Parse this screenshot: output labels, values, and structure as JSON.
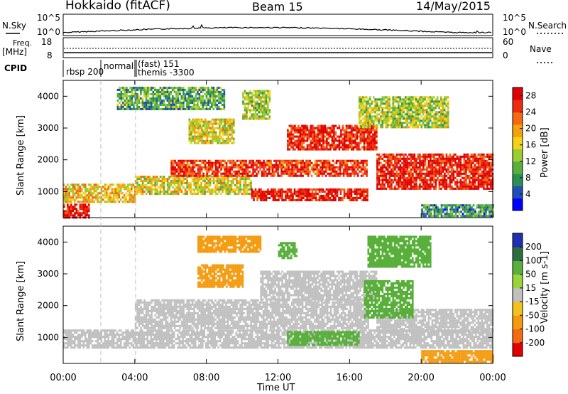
{
  "header": {
    "station": "Hokkaido (fitACF)",
    "beam": "Beam 15",
    "date": "14/May/2015"
  },
  "status_panels": {
    "nsky_label": "N.Sky",
    "nsearch_label": "N.Search",
    "freq_label_line1": "Freq.",
    "freq_label_line2": "[MHz]",
    "nave_label": "Nave",
    "cpid_label": "CPID",
    "left_ticks_top": [
      "10^5",
      "10^0"
    ],
    "right_ticks_top": [
      "10^5",
      "10^0"
    ],
    "left_ticks_freq": [
      "18",
      "8"
    ],
    "right_ticks_nave": [
      "60",
      "0"
    ],
    "cpid_entries": [
      "rbsp 200",
      "normal",
      "(fast) 151",
      "themis -3300"
    ]
  },
  "chart_data": [
    {
      "type": "heatmap",
      "name": "power",
      "xlabel": "",
      "ylabel": "Slant Range [km]",
      "x_ticks": [
        "00:00",
        "04:00",
        "08:00",
        "12:00",
        "16:00",
        "20:00",
        "00:00"
      ],
      "x_range_hours": [
        0,
        24
      ],
      "y_ticks": [
        1000,
        2000,
        3000,
        4000
      ],
      "y_range_km": [
        180,
        4500
      ],
      "colorbar_label": "Power [dB]",
      "colorbar_ticks": [
        4,
        8,
        12,
        16,
        20,
        24,
        28
      ],
      "colorbar_range": [
        0,
        30
      ],
      "colorbar_colors": [
        "#0000ff",
        "#1f4fb5",
        "#2a8f55",
        "#58b03a",
        "#9acd32",
        "#f2d21b",
        "#f4a20e",
        "#f46a12",
        "#ee2a10",
        "#e00000"
      ],
      "bands": [
        {
          "t0": 0.0,
          "t1": 1.4,
          "r0": 180,
          "r1": 620,
          "level": 29
        },
        {
          "t0": 0.0,
          "t1": 4.0,
          "r0": 700,
          "r1": 1250,
          "level": 18
        },
        {
          "t0": 4.0,
          "t1": 10.5,
          "r0": 900,
          "r1": 1500,
          "level": 16
        },
        {
          "t0": 6.0,
          "t1": 17.0,
          "r0": 1500,
          "r1": 2000,
          "level": 26
        },
        {
          "t0": 12.5,
          "t1": 17.5,
          "r0": 2300,
          "r1": 3100,
          "level": 27
        },
        {
          "t0": 10.5,
          "t1": 17.0,
          "r0": 700,
          "r1": 1100,
          "level": 28
        },
        {
          "t0": 17.5,
          "t1": 24.0,
          "r0": 1100,
          "r1": 2200,
          "level": 27
        },
        {
          "t0": 7.0,
          "t1": 9.5,
          "r0": 2500,
          "r1": 3300,
          "level": 16
        },
        {
          "t0": 10.0,
          "t1": 11.5,
          "r0": 3300,
          "r1": 4200,
          "level": 14
        },
        {
          "t0": 16.5,
          "t1": 21.5,
          "r0": 3000,
          "r1": 4000,
          "level": 14
        },
        {
          "t0": 3.0,
          "t1": 9.0,
          "r0": 3600,
          "r1": 4300,
          "level": 10
        },
        {
          "t0": 20.0,
          "t1": 24.0,
          "r0": 250,
          "r1": 600,
          "level": 8
        }
      ]
    },
    {
      "type": "heatmap",
      "name": "velocity",
      "xlabel": "Time UT",
      "ylabel": "Slant Range [km]",
      "x_ticks": [
        "00:00",
        "04:00",
        "08:00",
        "12:00",
        "16:00",
        "20:00",
        "00:00"
      ],
      "x_range_hours": [
        0,
        24
      ],
      "y_ticks": [
        1000,
        2000,
        3000,
        4000
      ],
      "y_range_km": [
        180,
        4500
      ],
      "colorbar_label": "Velocity [m s-1]",
      "colorbar_ticks": [
        "200",
        "100",
        "50",
        "15",
        "-15",
        "-50",
        "-100",
        "-200"
      ],
      "colorbar_colors": [
        "#1f2fb0",
        "#2e6e3e",
        "#58b03a",
        "#9bd43a",
        "#c0c0c0",
        "#f2c21b",
        "#f49a0e",
        "#f46a12",
        "#e00000"
      ],
      "bands": [
        {
          "t0": 0.0,
          "t1": 24.0,
          "r0": 700,
          "r1": 1250,
          "level": 0
        },
        {
          "t0": 4.0,
          "t1": 17.0,
          "r0": 1300,
          "r1": 2200,
          "level": 0
        },
        {
          "t0": 11.0,
          "t1": 17.5,
          "r0": 2200,
          "r1": 3100,
          "level": 0
        },
        {
          "t0": 17.5,
          "t1": 24.0,
          "r0": 1200,
          "r1": 1900,
          "level": 0
        },
        {
          "t0": 12.5,
          "t1": 16.5,
          "r0": 750,
          "r1": 1200,
          "level": 60
        },
        {
          "t0": 16.8,
          "t1": 19.5,
          "r0": 1600,
          "r1": 2800,
          "level": 60
        },
        {
          "t0": 17.0,
          "t1": 20.5,
          "r0": 3200,
          "r1": 4200,
          "level": 60
        },
        {
          "t0": 12.0,
          "t1": 13.0,
          "r0": 3500,
          "r1": 4000,
          "level": 60
        },
        {
          "t0": 7.5,
          "t1": 10.0,
          "r0": 2600,
          "r1": 3300,
          "level": -60
        },
        {
          "t0": 7.5,
          "t1": 11.0,
          "r0": 3700,
          "r1": 4200,
          "level": -40
        },
        {
          "t0": 20.0,
          "t1": 24.0,
          "r0": 250,
          "r1": 600,
          "level": -60
        }
      ]
    }
  ]
}
